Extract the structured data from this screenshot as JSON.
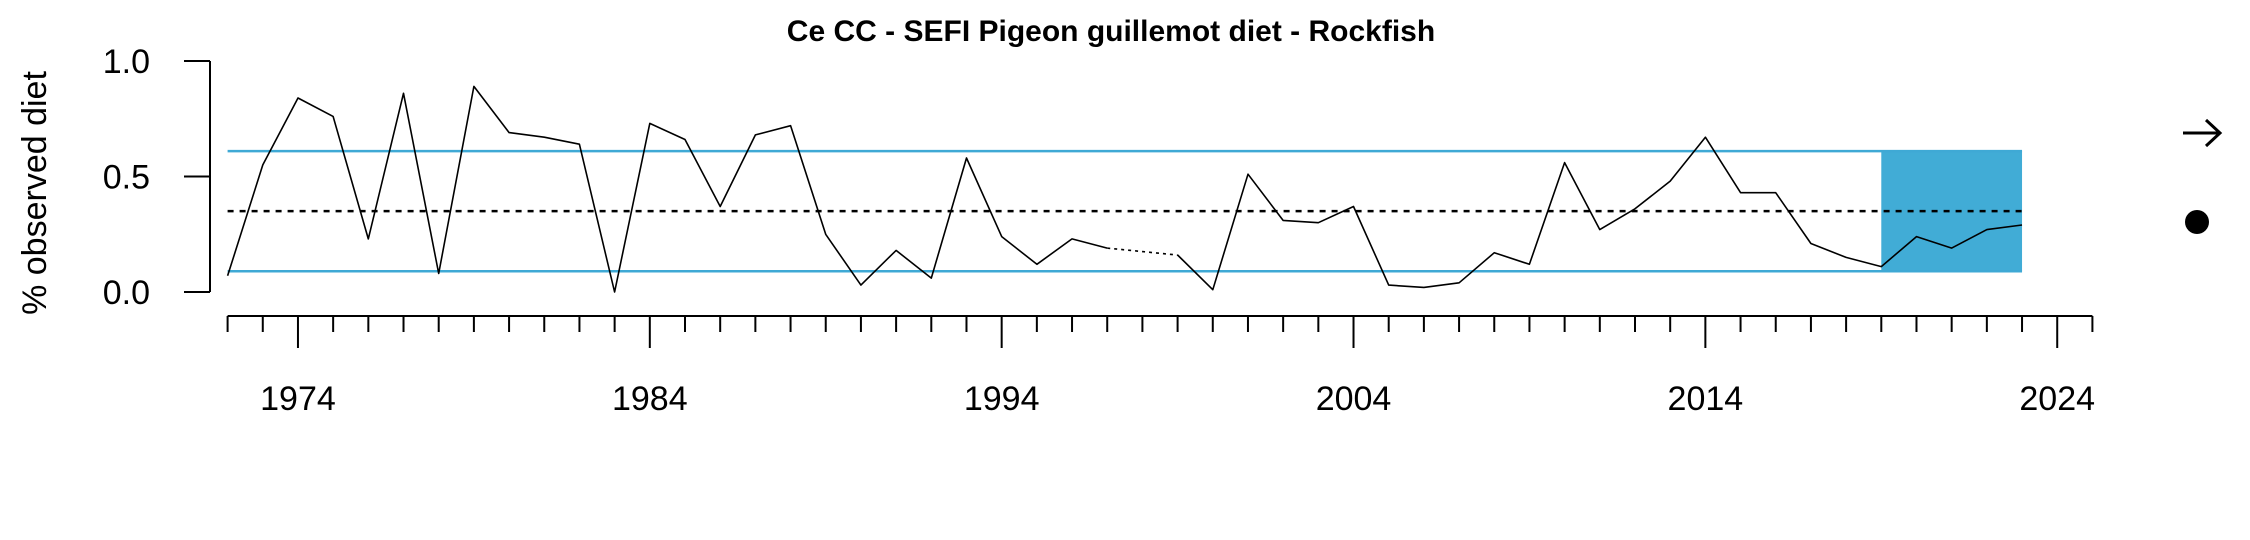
{
  "chart_data": {
    "type": "line",
    "title": "Ce CC - SEFI Pigeon guillemot diet - Rockfish",
    "xlabel": "",
    "ylabel": "% observed diet",
    "xlim": [
      1971.5,
      2025.5
    ],
    "ylim": [
      0,
      1
    ],
    "x_major_ticks": [
      1974,
      1984,
      1994,
      2004,
      2014,
      2024
    ],
    "x_major_tick_labels": [
      "1974",
      "1984",
      "1994",
      "2004",
      "2014",
      "2024"
    ],
    "y_ticks": [
      0,
      0.5,
      1
    ],
    "y_tick_labels": [
      "0.0",
      "0.5",
      "1.0"
    ],
    "grid": false,
    "series": [
      {
        "color": "#000000",
        "x": [
          1972,
          1973,
          1974,
          1975,
          1976,
          1977,
          1978,
          1979,
          1980,
          1981,
          1982,
          1983,
          1984,
          1985,
          1986,
          1987,
          1988,
          1989,
          1990,
          1991,
          1992,
          1993,
          1994,
          1995,
          1996,
          1997,
          1998,
          1999,
          2000,
          2001,
          2002,
          2003,
          2004,
          2005,
          2006,
          2007,
          2008,
          2009,
          2010,
          2011,
          2012,
          2013,
          2014,
          2015,
          2016,
          2017,
          2018,
          2019,
          2020,
          2021,
          2022,
          2023
        ],
        "values": [
          0.07,
          0.55,
          0.84,
          0.76,
          0.23,
          0.86,
          0.08,
          0.89,
          0.69,
          0.67,
          0.64,
          0.0,
          0.73,
          0.66,
          0.37,
          0.68,
          0.72,
          0.25,
          0.03,
          0.18,
          0.06,
          0.58,
          0.24,
          0.12,
          0.23,
          0.19,
          null,
          0.16,
          0.01,
          0.51,
          0.31,
          0.3,
          0.37,
          0.03,
          0.02,
          0.04,
          0.17,
          0.12,
          0.56,
          0.27,
          0.36,
          0.48,
          0.67,
          0.43,
          0.43,
          0.21,
          0.15,
          0.11,
          0.24,
          0.19,
          0.27,
          0.29
        ]
      }
    ],
    "reference_lines": {
      "mean": 0.35,
      "upper_sd": 0.61,
      "lower_sd": 0.09,
      "sd_color": "#3fa9d5",
      "mean_style": "dotted"
    },
    "highlight_window": {
      "x_start": 2019,
      "x_end": 2023,
      "color": "#41acd6"
    },
    "status_symbols": {
      "trend": "right-arrow-icon",
      "mean_status": "filled-circle-icon"
    }
  }
}
